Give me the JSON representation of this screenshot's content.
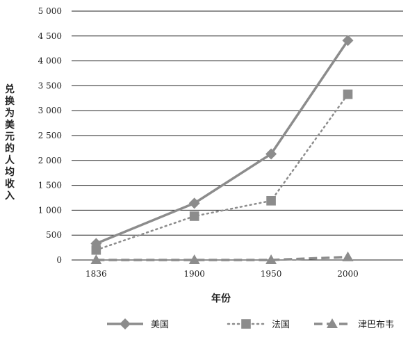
{
  "chart_data": {
    "type": "line",
    "title": "",
    "xlabel": "年份",
    "ylabel": "兑换为美元的人均收入",
    "categories": [
      "1836",
      "1900",
      "1950",
      "2000"
    ],
    "x_values": [
      1836,
      1900,
      1950,
      2000
    ],
    "xlim": [
      1820,
      2036
    ],
    "ylim": [
      0,
      5000
    ],
    "yticks": [
      0,
      500,
      1000,
      1500,
      2000,
      2500,
      3000,
      3500,
      4000,
      4500,
      5000
    ],
    "ytick_labels": [
      "0",
      "500",
      "1 000",
      "1 500",
      "2 000",
      "2 500",
      "3 000",
      "3 500",
      "4 000",
      "4 500",
      "5 000"
    ],
    "grid": "horizontal",
    "legend_position": "bottom",
    "series": [
      {
        "name": "美国",
        "values": [
          330,
          1140,
          2130,
          4410
        ],
        "line": "solid",
        "marker": "diamond",
        "color": "#8c8c8c"
      },
      {
        "name": "法国",
        "values": [
          200,
          880,
          1190,
          3330
        ],
        "line": "dotted",
        "marker": "square",
        "color": "#8c8c8c"
      },
      {
        "name": "津巴布韦",
        "values": [
          0,
          0,
          0,
          60
        ],
        "line": "dashed",
        "marker": "triangle",
        "color": "#8c8c8c"
      }
    ]
  }
}
